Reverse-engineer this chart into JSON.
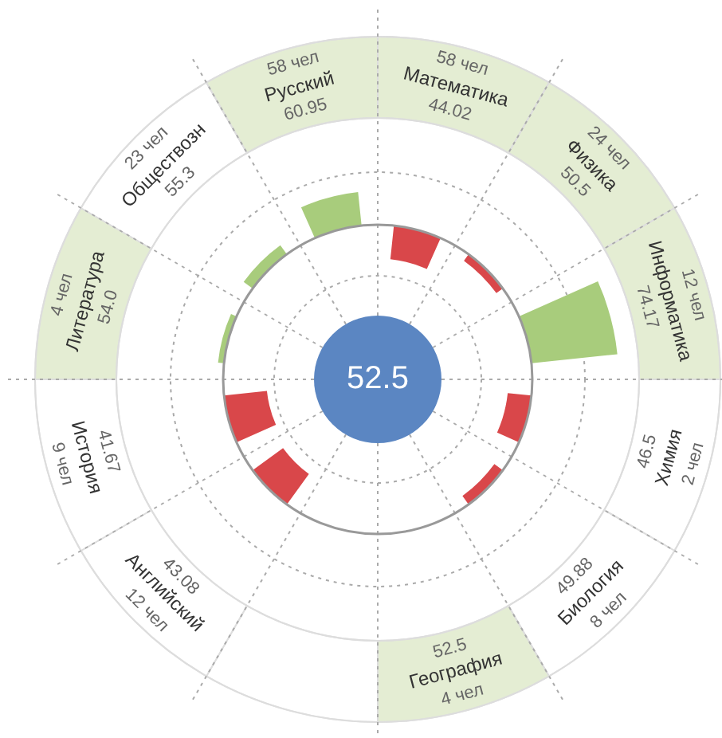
{
  "chart_data": {
    "type": "other",
    "categories": [
      "Математика",
      "Физика",
      "Информатика",
      "Химия",
      "Биология",
      "География",
      null,
      "Английский",
      "История",
      "Литература",
      "Обществозн",
      "Русский"
    ],
    "values": [
      44.02,
      50.5,
      74.17,
      46.5,
      49.88,
      52.5,
      null,
      43.08,
      41.67,
      54.0,
      55.3,
      60.95
    ],
    "value_labels": [
      "44.02",
      "50.5",
      "74.17",
      "46.5",
      "49.88",
      "52.5",
      null,
      "43.08",
      "41.67",
      "54.0",
      "55.3",
      "60.95"
    ],
    "colors": [
      "#e4edd3",
      "#e4edd3",
      "#e4edd3",
      "#ffffff",
      "#ffffff",
      "#e4edd3",
      "#ffffff",
      "#ffffff",
      "#ffffff",
      "#e4edd3",
      "#ffffff",
      "#e4edd3"
    ],
    "series": [
      {
        "values": [
          58,
          24,
          12,
          2,
          8,
          4,
          null,
          12,
          9,
          4,
          23,
          58
        ],
        "value_labels": [
          "58 чел",
          "24 чел",
          "12 чел",
          "2 чел",
          "8 чел",
          "4 чел",
          null,
          "12 чел",
          "9 чел",
          "4 чел",
          "23 чел",
          "58 чел"
        ]
      }
    ],
    "annotations": [
      "52.5"
    ]
  }
}
